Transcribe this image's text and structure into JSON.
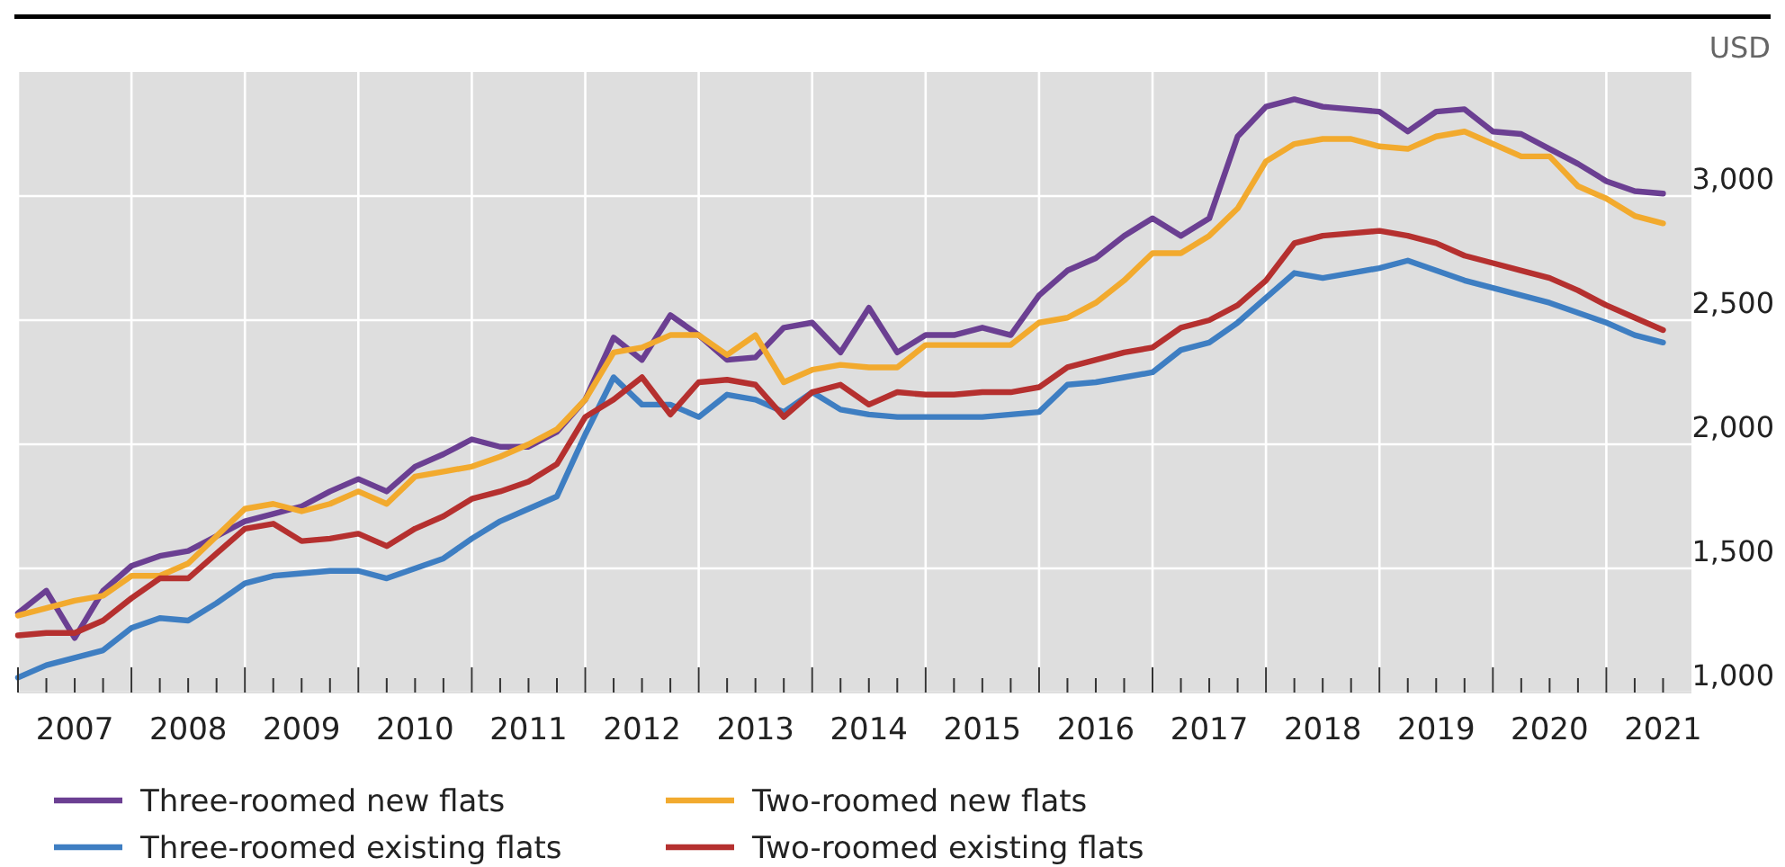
{
  "chart_data": {
    "type": "line",
    "ylabel": "USD",
    "xlim": [
      2007,
      2021.75
    ],
    "ylim": [
      1000,
      3500
    ],
    "x": [
      2007,
      2007.25,
      2007.5,
      2007.75,
      2008,
      2008.25,
      2008.5,
      2008.75,
      2009,
      2009.25,
      2009.5,
      2009.75,
      2010,
      2010.25,
      2010.5,
      2010.75,
      2011,
      2011.25,
      2011.5,
      2011.75,
      2012,
      2012.25,
      2012.5,
      2012.75,
      2013,
      2013.25,
      2013.5,
      2013.75,
      2014,
      2014.25,
      2014.5,
      2014.75,
      2015,
      2015.25,
      2015.5,
      2015.75,
      2016,
      2016.25,
      2016.5,
      2016.75,
      2017,
      2017.25,
      2017.5,
      2017.75,
      2018,
      2018.25,
      2018.5,
      2018.75,
      2019,
      2019.25,
      2019.5,
      2019.75,
      2020,
      2020.25,
      2020.5,
      2020.75,
      2021,
      2021.25,
      2021.5
    ],
    "xticks": [
      {
        "value": 2007,
        "label": null
      },
      {
        "value": 2007.25,
        "label": null
      },
      {
        "value": 2007.5,
        "label": "2007"
      },
      {
        "value": 2007.75,
        "label": null
      },
      {
        "value": 2008,
        "label": null
      },
      {
        "value": 2008.25,
        "label": null
      },
      {
        "value": 2008.5,
        "label": "2008"
      },
      {
        "value": 2008.75,
        "label": null
      },
      {
        "value": 2009,
        "label": null
      },
      {
        "value": 2009.25,
        "label": null
      },
      {
        "value": 2009.5,
        "label": "2009"
      },
      {
        "value": 2009.75,
        "label": null
      },
      {
        "value": 2010,
        "label": null
      },
      {
        "value": 2010.25,
        "label": null
      },
      {
        "value": 2010.5,
        "label": "2010"
      },
      {
        "value": 2010.75,
        "label": null
      },
      {
        "value": 2011,
        "label": null
      },
      {
        "value": 2011.25,
        "label": null
      },
      {
        "value": 2011.5,
        "label": "2011"
      },
      {
        "value": 2011.75,
        "label": null
      },
      {
        "value": 2012,
        "label": null
      },
      {
        "value": 2012.25,
        "label": null
      },
      {
        "value": 2012.5,
        "label": "2012"
      },
      {
        "value": 2012.75,
        "label": null
      },
      {
        "value": 2013,
        "label": null
      },
      {
        "value": 2013.25,
        "label": null
      },
      {
        "value": 2013.5,
        "label": "2013"
      },
      {
        "value": 2013.75,
        "label": null
      },
      {
        "value": 2014,
        "label": null
      },
      {
        "value": 2014.25,
        "label": null
      },
      {
        "value": 2014.5,
        "label": "2014"
      },
      {
        "value": 2014.75,
        "label": null
      },
      {
        "value": 2015,
        "label": null
      },
      {
        "value": 2015.25,
        "label": null
      },
      {
        "value": 2015.5,
        "label": "2015"
      },
      {
        "value": 2015.75,
        "label": null
      },
      {
        "value": 2016,
        "label": null
      },
      {
        "value": 2016.25,
        "label": null
      },
      {
        "value": 2016.5,
        "label": "2016"
      },
      {
        "value": 2016.75,
        "label": null
      },
      {
        "value": 2017,
        "label": null
      },
      {
        "value": 2017.25,
        "label": null
      },
      {
        "value": 2017.5,
        "label": "2017"
      },
      {
        "value": 2017.75,
        "label": null
      },
      {
        "value": 2018,
        "label": null
      },
      {
        "value": 2018.25,
        "label": null
      },
      {
        "value": 2018.5,
        "label": "2018"
      },
      {
        "value": 2018.75,
        "label": null
      },
      {
        "value": 2019,
        "label": null
      },
      {
        "value": 2019.25,
        "label": null
      },
      {
        "value": 2019.5,
        "label": "2019"
      },
      {
        "value": 2019.75,
        "label": null
      },
      {
        "value": 2020,
        "label": null
      },
      {
        "value": 2020.25,
        "label": null
      },
      {
        "value": 2020.5,
        "label": "2020"
      },
      {
        "value": 2020.75,
        "label": null
      },
      {
        "value": 2021,
        "label": null
      },
      {
        "value": 2021.25,
        "label": null
      },
      {
        "value": 2021.5,
        "label": "2021"
      }
    ],
    "yticks": [
      {
        "value": 1000,
        "label": "1,000"
      },
      {
        "value": 1500,
        "label": "1,500"
      },
      {
        "value": 2000,
        "label": "2,000"
      },
      {
        "value": 2500,
        "label": "2,500"
      },
      {
        "value": 3000,
        "label": "3,000"
      }
    ],
    "grid": true,
    "legend": "bottom",
    "marker": "none",
    "line_style": "solid",
    "series": [
      {
        "name": "Three-roomed new flats",
        "color": "#6b3f92",
        "values": [
          1320,
          1410,
          1220,
          1410,
          1510,
          1550,
          1570,
          1630,
          1690,
          1720,
          1750,
          1810,
          1860,
          1810,
          1910,
          1960,
          2020,
          1990,
          1990,
          2050,
          2180,
          2430,
          2340,
          2520,
          2440,
          2340,
          2350,
          2470,
          2490,
          2370,
          2550,
          2370,
          2440,
          2440,
          2470,
          2440,
          2600,
          2700,
          2750,
          2840,
          2910,
          2840,
          2910,
          3240,
          3360,
          3390,
          3360,
          3350,
          3340,
          3260,
          3340,
          3350,
          3260,
          3250,
          3190,
          3130,
          3060,
          3020,
          3010
        ]
      },
      {
        "name": "Three-roomed existing flats",
        "color": "#3e7ec2",
        "values": [
          1060,
          1110,
          1140,
          1170,
          1260,
          1300,
          1290,
          1360,
          1440,
          1470,
          1480,
          1490,
          1490,
          1460,
          1500,
          1540,
          1620,
          1690,
          1740,
          1790,
          2040,
          2270,
          2160,
          2160,
          2110,
          2200,
          2180,
          2130,
          2210,
          2140,
          2120,
          2110,
          2110,
          2110,
          2110,
          2120,
          2130,
          2240,
          2250,
          2270,
          2290,
          2380,
          2410,
          2490,
          2590,
          2690,
          2670,
          2690,
          2710,
          2740,
          2700,
          2660,
          2630,
          2600,
          2570,
          2530,
          2490,
          2440,
          2410
        ]
      },
      {
        "name": "Two-roomed new flats",
        "color": "#f2aa2e",
        "values": [
          1310,
          1340,
          1370,
          1390,
          1470,
          1470,
          1520,
          1630,
          1740,
          1760,
          1730,
          1760,
          1810,
          1760,
          1870,
          1890,
          1910,
          1950,
          2000,
          2060,
          2180,
          2370,
          2390,
          2440,
          2440,
          2360,
          2440,
          2250,
          2300,
          2320,
          2310,
          2310,
          2400,
          2400,
          2400,
          2400,
          2490,
          2510,
          2570,
          2660,
          2770,
          2770,
          2840,
          2950,
          3140,
          3210,
          3230,
          3230,
          3200,
          3190,
          3240,
          3260,
          3210,
          3160,
          3160,
          3040,
          2990,
          2920,
          2890
        ]
      },
      {
        "name": "Two-roomed existing flats",
        "color": "#b5302f",
        "values": [
          1230,
          1240,
          1240,
          1290,
          1380,
          1460,
          1460,
          1560,
          1660,
          1680,
          1610,
          1620,
          1640,
          1590,
          1660,
          1710,
          1780,
          1810,
          1850,
          1920,
          2110,
          2180,
          2270,
          2120,
          2250,
          2260,
          2240,
          2110,
          2210,
          2240,
          2160,
          2210,
          2200,
          2200,
          2210,
          2210,
          2230,
          2310,
          2340,
          2370,
          2390,
          2470,
          2500,
          2560,
          2660,
          2810,
          2840,
          2850,
          2860,
          2840,
          2810,
          2760,
          2730,
          2700,
          2670,
          2620,
          2560,
          2510,
          2460
        ]
      }
    ]
  }
}
